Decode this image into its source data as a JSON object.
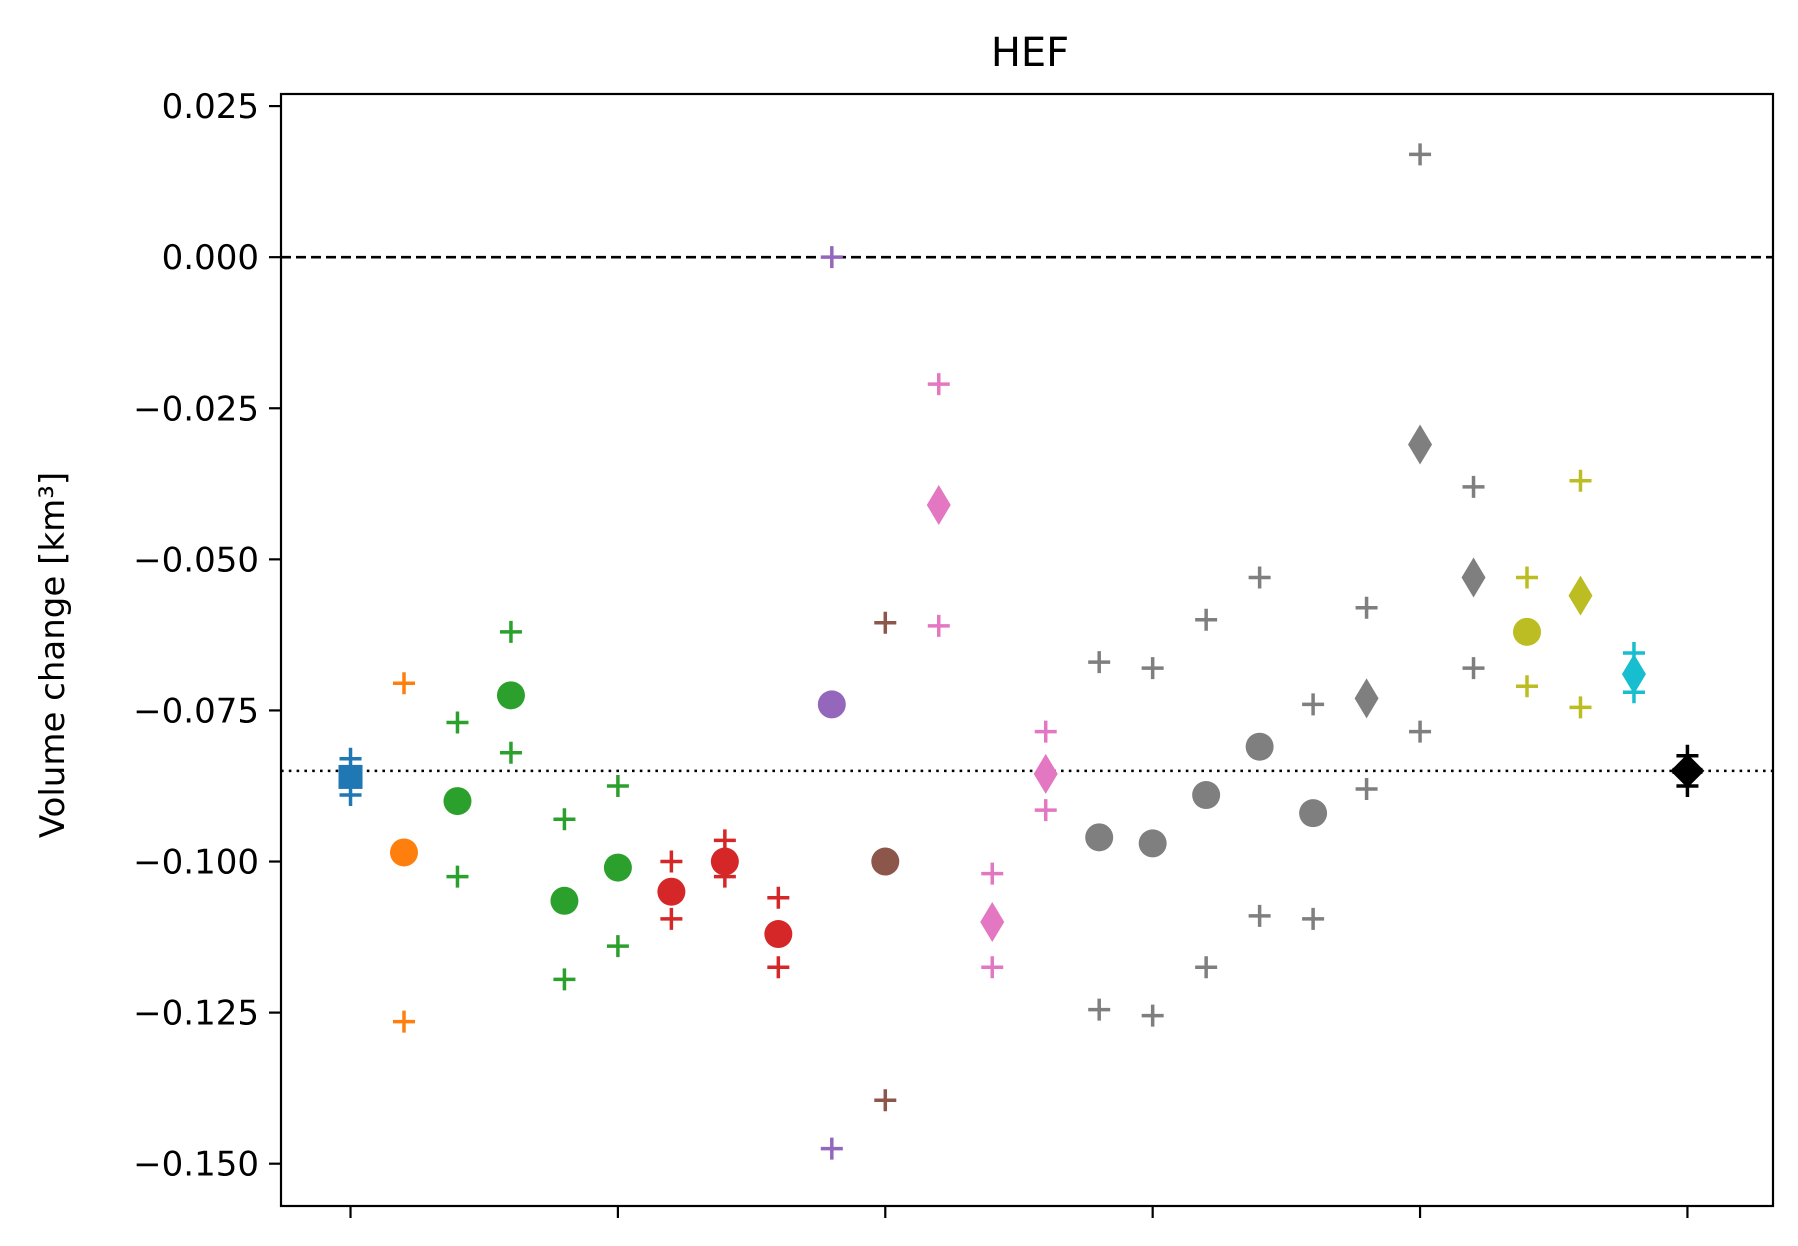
{
  "chart_data": {
    "type": "scatter",
    "title": "HEF",
    "ylabel": "Volume change [km³]",
    "ylim": [
      -0.157,
      0.027
    ],
    "xlim": [
      -0.3,
      27.6
    ],
    "yticks": [
      0.025,
      0.0,
      -0.025,
      -0.05,
      -0.075,
      -0.1,
      -0.125,
      -0.15
    ],
    "ytick_labels": [
      "0.025",
      "0.000",
      "−0.025",
      "−0.050",
      "−0.075",
      "−0.100",
      "−0.125",
      "−0.150"
    ],
    "xticks": [
      1,
      6,
      11,
      16,
      21,
      26
    ],
    "grid": false,
    "reference_lines": [
      {
        "y": 0.0,
        "style": "dashed",
        "color": "#000000"
      },
      {
        "y": -0.085,
        "style": "dotted",
        "color": "#000000"
      }
    ],
    "points": [
      {
        "x": 1,
        "center": -0.086,
        "low": -0.089,
        "high": -0.083,
        "marker": "square",
        "color": "#1f77b4"
      },
      {
        "x": 2,
        "center": -0.0985,
        "low": -0.1265,
        "high": -0.0705,
        "marker": "circle",
        "color": "#ff7f0e"
      },
      {
        "x": 3,
        "center": -0.09,
        "low": -0.1025,
        "high": -0.077,
        "marker": "circle",
        "color": "#2ca02c"
      },
      {
        "x": 4,
        "center": -0.0725,
        "low": -0.082,
        "high": -0.062,
        "marker": "circle",
        "color": "#2ca02c"
      },
      {
        "x": 5,
        "center": -0.1065,
        "low": -0.1195,
        "high": -0.093,
        "marker": "circle",
        "color": "#2ca02c"
      },
      {
        "x": 6,
        "center": -0.101,
        "low": -0.114,
        "high": -0.0875,
        "marker": "circle",
        "color": "#2ca02c"
      },
      {
        "x": 7,
        "center": -0.105,
        "low": -0.1095,
        "high": -0.1,
        "marker": "circle",
        "color": "#d62728"
      },
      {
        "x": 8,
        "center": -0.1,
        "low": -0.1025,
        "high": -0.0965,
        "marker": "circle",
        "color": "#d62728"
      },
      {
        "x": 9,
        "center": -0.112,
        "low": -0.1175,
        "high": -0.106,
        "marker": "circle",
        "color": "#d62728"
      },
      {
        "x": 10,
        "center": -0.074,
        "low": -0.1475,
        "high": 0.0,
        "marker": "circle",
        "color": "#9467bd"
      },
      {
        "x": 11,
        "center": -0.1,
        "low": -0.1395,
        "high": -0.0605,
        "marker": "circle",
        "color": "#8c564b"
      },
      {
        "x": 12,
        "center": -0.041,
        "low": -0.061,
        "high": -0.021,
        "marker": "diamond",
        "color": "#e377c2"
      },
      {
        "x": 13,
        "center": -0.11,
        "low": -0.1175,
        "high": -0.102,
        "marker": "diamond",
        "color": "#e377c2"
      },
      {
        "x": 14,
        "center": -0.0855,
        "low": -0.0915,
        "high": -0.0785,
        "marker": "diamond",
        "color": "#e377c2"
      },
      {
        "x": 15,
        "center": -0.096,
        "low": -0.1245,
        "high": -0.067,
        "marker": "circle",
        "color": "#7f7f7f"
      },
      {
        "x": 16,
        "center": -0.097,
        "low": -0.1255,
        "high": -0.068,
        "marker": "circle",
        "color": "#7f7f7f"
      },
      {
        "x": 17,
        "center": -0.089,
        "low": -0.1175,
        "high": -0.06,
        "marker": "circle",
        "color": "#7f7f7f"
      },
      {
        "x": 18,
        "center": -0.081,
        "low": -0.109,
        "high": -0.053,
        "marker": "circle",
        "color": "#7f7f7f"
      },
      {
        "x": 19,
        "center": -0.092,
        "low": -0.1095,
        "high": -0.074,
        "marker": "circle",
        "color": "#7f7f7f"
      },
      {
        "x": 20,
        "center": -0.073,
        "low": -0.088,
        "high": -0.058,
        "marker": "diamond",
        "color": "#7f7f7f"
      },
      {
        "x": 21,
        "center": -0.031,
        "low": -0.0785,
        "high": 0.017,
        "marker": "diamond",
        "color": "#7f7f7f"
      },
      {
        "x": 22,
        "center": -0.053,
        "low": -0.068,
        "high": -0.038,
        "marker": "diamond",
        "color": "#7f7f7f"
      },
      {
        "x": 23,
        "center": -0.062,
        "low": -0.071,
        "high": -0.053,
        "marker": "circle",
        "color": "#bcbd22"
      },
      {
        "x": 24,
        "center": -0.056,
        "low": -0.0745,
        "high": -0.037,
        "marker": "diamond",
        "color": "#bcbd22"
      },
      {
        "x": 25,
        "center": -0.069,
        "low": -0.072,
        "high": -0.0655,
        "marker": "diamond",
        "color": "#17becf"
      },
      {
        "x": 26,
        "center": -0.085,
        "low": -0.0875,
        "high": -0.0825,
        "marker": "plus-bold",
        "color": "#000000"
      }
    ]
  }
}
